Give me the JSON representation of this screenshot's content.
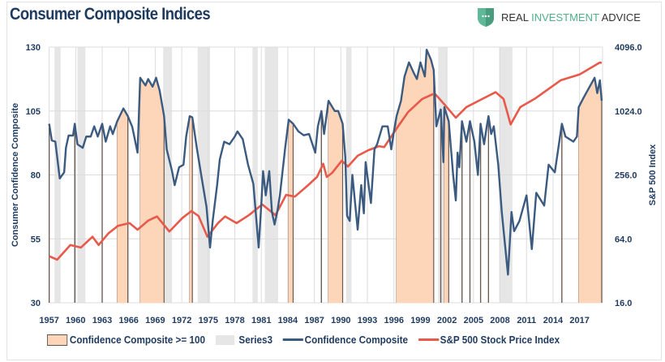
{
  "header": {
    "title": "Consumer Composite Indices",
    "logo_text": [
      "REAL",
      "INVESTMENT",
      "ADVICE"
    ],
    "logo_icon": "shield-chat-icon"
  },
  "colors": {
    "shade": "#fdd5b8",
    "recession": "#e6e6e6",
    "confidence": "#3b5a80",
    "sp500": "#e8594a",
    "text": "#1f3a5f",
    "logo_green": "#4fb08a"
  },
  "chart_data": {
    "type": "line",
    "title": "Consumer Composite Indices",
    "ylabel": "Consumer Confidence Composite",
    "y2label": "S&P 500 Index",
    "xlim": [
      1957,
      2019.6
    ],
    "ylim": [
      30,
      130
    ],
    "y2lim": [
      16,
      4096
    ],
    "y2scale": "log2",
    "grid": true,
    "legend_position": "bottom",
    "x_ticks": [
      "1957",
      "1960",
      "1963",
      "1966",
      "1969",
      "1972",
      "1975",
      "1978",
      "1981",
      "1984",
      "1987",
      "1990",
      "1993",
      "1996",
      "1999",
      "2002",
      "2005",
      "2008",
      "2011",
      "2014",
      "2017"
    ],
    "y_ticks": [
      "130",
      "105",
      "80",
      "55",
      "30"
    ],
    "y2_ticks": [
      "4096.0",
      "1024.0",
      "256.0",
      "64.0",
      "16.0"
    ],
    "legend": [
      "Confidence Composite >= 100",
      "Series3",
      "Confidence Composite",
      "S&P 500 Stock Price Index"
    ],
    "series3_ranges": [
      [
        1957.6,
        1958.3
      ],
      [
        1960.2,
        1961.1
      ],
      [
        1969.9,
        1970.9
      ],
      [
        1973.8,
        1975.2
      ],
      [
        1980.0,
        1980.6
      ],
      [
        1981.4,
        1982.9
      ],
      [
        1990.6,
        1991.2
      ],
      [
        2001.0,
        2002.0
      ],
      [
        2007.9,
        2009.4
      ]
    ],
    "confidence_threshold": 100,
    "confidence": [
      [
        1957.0,
        100
      ],
      [
        1957.3,
        93.5
      ],
      [
        1957.7,
        93
      ],
      [
        1958.2,
        78.6
      ],
      [
        1958.7,
        81
      ],
      [
        1958.9,
        90.6
      ],
      [
        1959.2,
        95.4
      ],
      [
        1959.7,
        95.4
      ],
      [
        1959.9,
        100
      ],
      [
        1960.2,
        92
      ],
      [
        1960.8,
        90.6
      ],
      [
        1961.2,
        95
      ],
      [
        1961.7,
        95
      ],
      [
        1962.1,
        99
      ],
      [
        1962.5,
        95
      ],
      [
        1963.0,
        100
      ],
      [
        1963.4,
        93
      ],
      [
        1963.9,
        99
      ],
      [
        1964.2,
        96
      ],
      [
        1964.7,
        101
      ],
      [
        1965.4,
        106
      ],
      [
        1965.9,
        103
      ],
      [
        1966.4,
        98.8
      ],
      [
        1967.0,
        88.7
      ],
      [
        1967.3,
        118
      ],
      [
        1967.9,
        115
      ],
      [
        1968.2,
        117.5
      ],
      [
        1968.7,
        114.5
      ],
      [
        1969.1,
        118
      ],
      [
        1969.5,
        113
      ],
      [
        1970.0,
        103
      ],
      [
        1970.3,
        90
      ],
      [
        1970.9,
        81.5
      ],
      [
        1971.2,
        76
      ],
      [
        1971.7,
        83
      ],
      [
        1972.2,
        84
      ],
      [
        1972.5,
        95
      ],
      [
        1972.9,
        103
      ],
      [
        1973.2,
        102.5
      ],
      [
        1973.7,
        90.6
      ],
      [
        1974.2,
        80
      ],
      [
        1974.8,
        67.5
      ],
      [
        1975.2,
        51.6
      ],
      [
        1975.5,
        62
      ],
      [
        1976.0,
        76
      ],
      [
        1976.3,
        86
      ],
      [
        1976.8,
        93
      ],
      [
        1977.4,
        92
      ],
      [
        1978.0,
        95
      ],
      [
        1978.3,
        97
      ],
      [
        1978.9,
        94
      ],
      [
        1979.5,
        84
      ],
      [
        1980.1,
        76.5
      ],
      [
        1980.7,
        51.6
      ],
      [
        1981.0,
        68.5
      ],
      [
        1981.2,
        81.5
      ],
      [
        1981.5,
        72
      ],
      [
        1981.9,
        81.5
      ],
      [
        1982.2,
        65.5
      ],
      [
        1982.5,
        60.6
      ],
      [
        1982.8,
        65.5
      ],
      [
        1983.1,
        72
      ],
      [
        1983.7,
        90.6
      ],
      [
        1984.1,
        101.6
      ],
      [
        1984.6,
        100
      ],
      [
        1985.2,
        97
      ],
      [
        1985.8,
        95.5
      ],
      [
        1986.4,
        96
      ],
      [
        1987.1,
        88.7
      ],
      [
        1987.4,
        99
      ],
      [
        1987.8,
        105
      ],
      [
        1988.1,
        96
      ],
      [
        1988.6,
        109
      ],
      [
        1989.3,
        105
      ],
      [
        1989.7,
        105
      ],
      [
        1990.2,
        100
      ],
      [
        1990.5,
        87
      ],
      [
        1990.7,
        64
      ],
      [
        1991.0,
        62
      ],
      [
        1991.3,
        80
      ],
      [
        1991.9,
        58.6
      ],
      [
        1992.3,
        76
      ],
      [
        1992.6,
        65
      ],
      [
        1992.8,
        85
      ],
      [
        1993.4,
        69
      ],
      [
        1993.8,
        90
      ],
      [
        1994.1,
        92
      ],
      [
        1994.7,
        99
      ],
      [
        1995.3,
        99
      ],
      [
        1995.7,
        90
      ],
      [
        1996.0,
        97
      ],
      [
        1996.3,
        103
      ],
      [
        1996.8,
        109
      ],
      [
        1997.2,
        118.5
      ],
      [
        1997.7,
        124
      ],
      [
        1998.3,
        119.5
      ],
      [
        1998.6,
        117.5
      ],
      [
        1999.0,
        124
      ],
      [
        1999.5,
        118.5
      ],
      [
        1999.7,
        129
      ],
      [
        2000.2,
        125
      ],
      [
        2000.5,
        121
      ],
      [
        2000.8,
        99
      ],
      [
        2001.3,
        105.6
      ],
      [
        2001.6,
        85
      ],
      [
        2001.7,
        106.5
      ],
      [
        2002.2,
        101
      ],
      [
        2002.7,
        80
      ],
      [
        2003.0,
        70
      ],
      [
        2003.2,
        88.7
      ],
      [
        2003.4,
        83
      ],
      [
        2003.7,
        101
      ],
      [
        2004.2,
        93
      ],
      [
        2004.6,
        101
      ],
      [
        2005.1,
        93
      ],
      [
        2005.5,
        80
      ],
      [
        2005.8,
        100
      ],
      [
        2006.2,
        92
      ],
      [
        2006.5,
        99
      ],
      [
        2006.7,
        103
      ],
      [
        2007.0,
        96
      ],
      [
        2007.3,
        99
      ],
      [
        2007.8,
        84
      ],
      [
        2008.2,
        65.5
      ],
      [
        2008.5,
        55
      ],
      [
        2008.9,
        41
      ],
      [
        2009.3,
        65.5
      ],
      [
        2009.6,
        58
      ],
      [
        2010.2,
        62
      ],
      [
        2011.0,
        72
      ],
      [
        2011.6,
        51
      ],
      [
        2012.1,
        73
      ],
      [
        2013.0,
        68
      ],
      [
        2013.5,
        84
      ],
      [
        2014.2,
        81
      ],
      [
        2015.0,
        100
      ],
      [
        2015.4,
        95
      ],
      [
        2016.3,
        93
      ],
      [
        2016.7,
        95
      ],
      [
        2016.9,
        106.5
      ],
      [
        2017.5,
        110.5
      ],
      [
        2017.9,
        113
      ],
      [
        2018.7,
        118
      ],
      [
        2019.0,
        112
      ],
      [
        2019.3,
        117
      ],
      [
        2019.5,
        109
      ]
    ],
    "sp500": [
      [
        1957.0,
        44
      ],
      [
        1957.9,
        40.7
      ],
      [
        1959.4,
        56
      ],
      [
        1960.6,
        53
      ],
      [
        1961.9,
        67
      ],
      [
        1962.6,
        56
      ],
      [
        1963.7,
        72
      ],
      [
        1964.8,
        85
      ],
      [
        1966.1,
        90
      ],
      [
        1967.0,
        78
      ],
      [
        1968.2,
        95
      ],
      [
        1969.2,
        104
      ],
      [
        1970.6,
        75
      ],
      [
        1972.1,
        101
      ],
      [
        1973.1,
        117
      ],
      [
        1973.9,
        105
      ],
      [
        1974.9,
        67
      ],
      [
        1976.1,
        90
      ],
      [
        1976.9,
        104
      ],
      [
        1978.2,
        90
      ],
      [
        1979.6,
        107
      ],
      [
        1981.1,
        135
      ],
      [
        1982.6,
        107
      ],
      [
        1983.8,
        166
      ],
      [
        1984.8,
        160
      ],
      [
        1986.3,
        205
      ],
      [
        1987.3,
        245
      ],
      [
        1988.0,
        326
      ],
      [
        1988.4,
        245
      ],
      [
        1989.0,
        267
      ],
      [
        1990.1,
        348
      ],
      [
        1990.8,
        307
      ],
      [
        1991.9,
        388
      ],
      [
        1993.1,
        437
      ],
      [
        1994.3,
        477
      ],
      [
        1994.9,
        468
      ],
      [
        1996.3,
        700
      ],
      [
        1997.6,
        1000
      ],
      [
        1999.2,
        1330
      ],
      [
        2000.6,
        1500
      ],
      [
        2001.7,
        1185
      ],
      [
        2003.0,
        885
      ],
      [
        2004.2,
        1115
      ],
      [
        2006.0,
        1330
      ],
      [
        2007.5,
        1540
      ],
      [
        2008.4,
        1330
      ],
      [
        2009.2,
        765
      ],
      [
        2010.3,
        1115
      ],
      [
        2011.9,
        1330
      ],
      [
        2014.9,
        2000
      ],
      [
        2017.0,
        2260
      ],
      [
        2019.3,
        2930
      ],
      [
        2019.5,
        2900
      ]
    ]
  }
}
